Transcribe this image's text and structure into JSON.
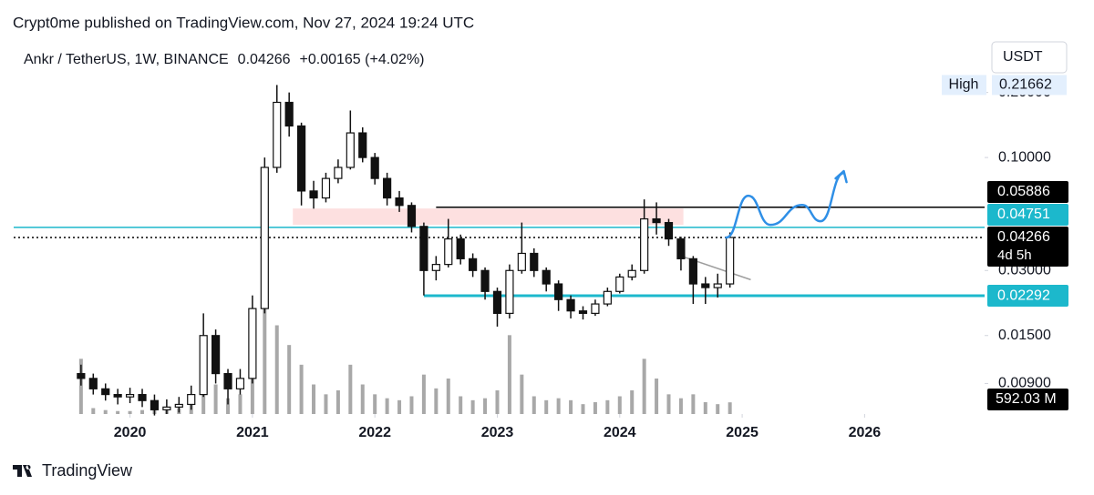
{
  "header": {
    "publisher": "Crypt0me published on TradingView.com, Nov 27, 2024 19:24 UTC"
  },
  "chart_data": {
    "type": "candlestick",
    "symbol": "Ankr / TetherUS, 1W, BINANCE",
    "last": 0.04266,
    "change": "+0.00165 (+4.02%)",
    "currency": "USDT",
    "log_scale": true,
    "color": "#111111",
    "xlim": [
      2019.05,
      2026.98
    ],
    "xticks": [
      2020,
      2021,
      2022,
      2023,
      2024,
      2025,
      2026
    ],
    "ylim": [
      0.0065,
      0.235
    ],
    "yticks": [
      {
        "value": 0.2,
        "label": "0.20000"
      },
      {
        "value": 0.1,
        "label": "0.10000"
      },
      {
        "value": 0.03,
        "label": "0.03000"
      },
      {
        "value": 0.015,
        "label": "0.01500"
      },
      {
        "value": 0.009,
        "label": "0.00900"
      }
    ],
    "x": [
      2019.6,
      2019.7,
      2019.8,
      2019.9,
      2020.0,
      2020.1,
      2020.2,
      2020.3,
      2020.4,
      2020.5,
      2020.6,
      2020.7,
      2020.8,
      2020.9,
      2021.0,
      2021.1,
      2021.2,
      2021.3,
      2021.4,
      2021.5,
      2021.6,
      2021.7,
      2021.8,
      2021.9,
      2022.0,
      2022.1,
      2022.2,
      2022.3,
      2022.4,
      2022.5,
      2022.6,
      2022.7,
      2022.8,
      2022.9,
      2023.0,
      2023.1,
      2023.2,
      2023.3,
      2023.4,
      2023.5,
      2023.6,
      2023.7,
      2023.8,
      2023.9,
      2024.0,
      2024.1,
      2024.2,
      2024.3,
      2024.4,
      2024.5,
      2024.6,
      2024.7,
      2024.8,
      2024.9
    ],
    "open": [
      0.01,
      0.0095,
      0.0085,
      0.008,
      0.0078,
      0.008,
      0.0075,
      0.0068,
      0.007,
      0.0072,
      0.008,
      0.015,
      0.01,
      0.0085,
      0.0095,
      0.02,
      0.09,
      0.18,
      0.14,
      0.07,
      0.065,
      0.08,
      0.09,
      0.13,
      0.1,
      0.08,
      0.065,
      0.06,
      0.048,
      0.03,
      0.032,
      0.042,
      0.034,
      0.03,
      0.024,
      0.019,
      0.03,
      0.036,
      0.03,
      0.026,
      0.022,
      0.0195,
      0.019,
      0.021,
      0.024,
      0.028,
      0.03,
      0.052,
      0.05,
      0.042,
      0.034,
      0.026,
      0.025,
      0.026
    ],
    "high": [
      0.011,
      0.01,
      0.009,
      0.0085,
      0.0086,
      0.0085,
      0.008,
      0.0076,
      0.0078,
      0.0088,
      0.019,
      0.016,
      0.0105,
      0.0105,
      0.023,
      0.1,
      0.21662,
      0.2,
      0.145,
      0.078,
      0.085,
      0.098,
      0.165,
      0.138,
      0.105,
      0.085,
      0.07,
      0.062,
      0.05,
      0.035,
      0.052,
      0.044,
      0.036,
      0.031,
      0.025,
      0.032,
      0.05,
      0.038,
      0.031,
      0.027,
      0.023,
      0.0205,
      0.022,
      0.025,
      0.029,
      0.032,
      0.064,
      0.062,
      0.052,
      0.043,
      0.035,
      0.028,
      0.029,
      0.045
    ],
    "low": [
      0.0088,
      0.008,
      0.0075,
      0.0072,
      0.0073,
      0.007,
      0.0064,
      0.0065,
      0.0066,
      0.0068,
      0.0078,
      0.009,
      0.0072,
      0.008,
      0.009,
      0.019,
      0.085,
      0.125,
      0.06,
      0.058,
      0.062,
      0.076,
      0.088,
      0.095,
      0.075,
      0.06,
      0.056,
      0.045,
      0.023,
      0.027,
      0.031,
      0.032,
      0.028,
      0.022,
      0.0165,
      0.018,
      0.029,
      0.028,
      0.024,
      0.0195,
      0.018,
      0.0178,
      0.0185,
      0.0205,
      0.0235,
      0.027,
      0.029,
      0.044,
      0.039,
      0.03,
      0.021,
      0.021,
      0.0225,
      0.025
    ],
    "close": [
      0.0095,
      0.0085,
      0.008,
      0.0078,
      0.008,
      0.0075,
      0.0068,
      0.007,
      0.0072,
      0.008,
      0.015,
      0.01,
      0.0085,
      0.0095,
      0.02,
      0.09,
      0.18,
      0.14,
      0.07,
      0.065,
      0.08,
      0.09,
      0.13,
      0.1,
      0.08,
      0.065,
      0.06,
      0.048,
      0.03,
      0.032,
      0.042,
      0.034,
      0.03,
      0.024,
      0.019,
      0.03,
      0.036,
      0.03,
      0.026,
      0.022,
      0.0195,
      0.019,
      0.021,
      0.024,
      0.028,
      0.03,
      0.052,
      0.05,
      0.042,
      0.034,
      0.026,
      0.025,
      0.026,
      0.04266
    ],
    "volume": [
      2800,
      300,
      200,
      150,
      150,
      200,
      300,
      200,
      300,
      800,
      2500,
      1500,
      800,
      1000,
      3000,
      5500,
      4500,
      3500,
      2500,
      1500,
      1000,
      1200,
      2500,
      1500,
      1000,
      800,
      700,
      900,
      2000,
      1300,
      1800,
      900,
      700,
      800,
      1200,
      4000,
      2000,
      900,
      700,
      800,
      700,
      500,
      600,
      700,
      900,
      1200,
      2800,
      1800,
      1000,
      800,
      1000,
      600,
      500,
      592.03
    ],
    "volume_color": "#a8a8a8",
    "volume_lim": [
      0,
      6000
    ],
    "current_volume": {
      "value": 592.03,
      "label": "592.03 M"
    },
    "high_marker": {
      "label": "High",
      "value": 0.21662
    },
    "countdown": "4d 5h",
    "levels": [
      {
        "value": 0.05886,
        "color": "#000000",
        "style": "solid",
        "x_start": 2022.5
      },
      {
        "value": 0.04751,
        "color": "#1cb8cc",
        "style": "solid",
        "x_start": 2019.05
      },
      {
        "value": 0.04266,
        "color": "#000000",
        "style": "dotted",
        "x_start": 2019.05
      },
      {
        "value": 0.02292,
        "color": "#1cb8cc",
        "style": "thick",
        "x_start": 2022.4
      }
    ],
    "zone": {
      "x": [
        2021.33,
        2024.52
      ],
      "low": 0.0488,
      "high": 0.0581,
      "color": "#fde0e0"
    },
    "trendline": {
      "x": [
        2024.52,
        2025.07
      ],
      "y": [
        0.0347,
        0.0272
      ],
      "color": "#9e9e9e"
    },
    "projection": {
      "x": [
        2024.87,
        2025.05,
        2025.23,
        2025.49,
        2025.64,
        2025.83
      ],
      "y": [
        0.04266,
        0.0665,
        0.0488,
        0.0603,
        0.0507,
        0.0848
      ],
      "color": "#2f8fe6"
    }
  },
  "footer": {
    "brand": "TradingView"
  }
}
